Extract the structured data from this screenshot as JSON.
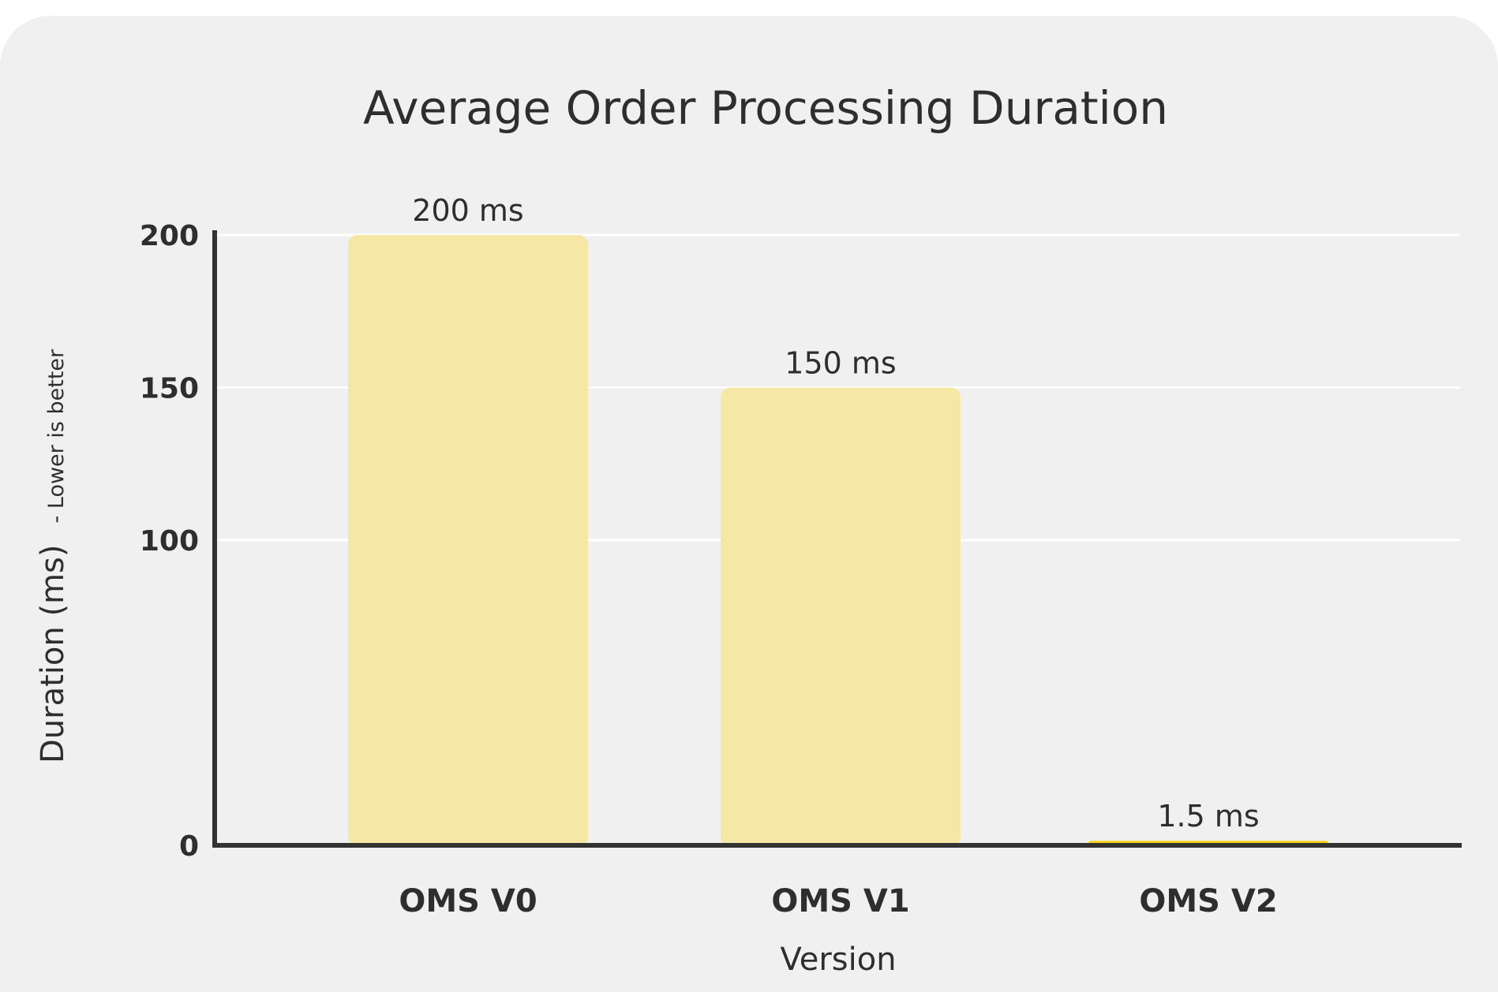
{
  "chart_data": {
    "type": "bar",
    "title": "Average Order Processing Duration",
    "xlabel": "Version",
    "ylabel": "Duration (ms)",
    "ylabel_note": "- Lower is better",
    "categories": [
      "OMS V0",
      "OMS V1",
      "OMS V2"
    ],
    "values": [
      200,
      150,
      1.5
    ],
    "data_labels": [
      "200 ms",
      "150 ms",
      "1.5 ms"
    ],
    "ylim": [
      0,
      200
    ],
    "yticks": [
      0,
      100,
      150,
      200
    ],
    "grid": true,
    "legend": "none",
    "colors": {
      "default_bar": "#f5e8a6",
      "highlight_bar": "#f7d21a",
      "axis": "#333333",
      "grid": "#ffffff",
      "background": "#f0f0f0"
    },
    "highlight_index": 2
  }
}
